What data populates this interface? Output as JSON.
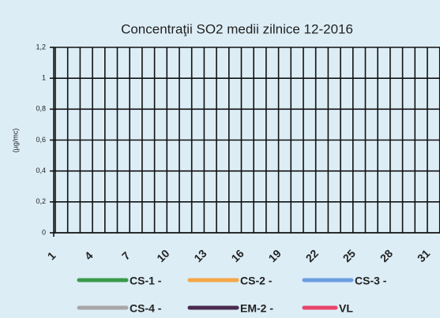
{
  "chart_data": {
    "type": "line",
    "title": "Concentraţii SO2 medii zilnice 12-2016",
    "y_label": "(µg/mc)",
    "categories": [
      "1",
      null,
      null,
      "4",
      null,
      null,
      "7",
      null,
      null,
      "10",
      null,
      null,
      "13",
      null,
      null,
      "16",
      null,
      null,
      "19",
      null,
      null,
      "22",
      null,
      null,
      "25",
      null,
      null,
      "28",
      null,
      null,
      "31"
    ],
    "ylim": [
      0,
      1.2
    ],
    "yticks": [
      0,
      {
        "value": 0.2,
        "label": "0,2"
      },
      {
        "value": 0.4,
        "label": "0,4"
      },
      {
        "value": 0.6,
        "label": "0,6"
      },
      {
        "value": 0.8,
        "label": "0,8"
      },
      1,
      {
        "value": 1.2,
        "label": "1,2"
      }
    ],
    "grid": true,
    "series": [
      {
        "name": "CS-1 -",
        "color": "#3a9a4a",
        "values": [
          null,
          null,
          null,
          null,
          null,
          null,
          null,
          null,
          null,
          null,
          null,
          null,
          null,
          null,
          null,
          null,
          null,
          null,
          null,
          null,
          null,
          null,
          null,
          null,
          null,
          null,
          null,
          null,
          null,
          null,
          null
        ]
      },
      {
        "name": "CS-2 -",
        "color": "#f5a646",
        "values": [
          null,
          null,
          null,
          null,
          null,
          null,
          null,
          null,
          null,
          null,
          null,
          null,
          null,
          null,
          null,
          null,
          null,
          null,
          null,
          null,
          null,
          null,
          null,
          null,
          null,
          null,
          null,
          null,
          null,
          null,
          null
        ]
      },
      {
        "name": "CS-3 -",
        "color": "#6a9ee0",
        "values": [
          null,
          null,
          null,
          null,
          null,
          null,
          null,
          null,
          null,
          null,
          null,
          null,
          null,
          null,
          null,
          null,
          null,
          null,
          null,
          null,
          null,
          null,
          null,
          null,
          null,
          null,
          null,
          null,
          null,
          null,
          null
        ]
      },
      {
        "name": "CS-4 -",
        "color": "#a8a8a8",
        "values": [
          null,
          null,
          null,
          null,
          null,
          null,
          null,
          null,
          null,
          null,
          null,
          null,
          null,
          null,
          null,
          null,
          null,
          null,
          null,
          null,
          null,
          null,
          null,
          null,
          null,
          null,
          null,
          null,
          null,
          null,
          null
        ]
      },
      {
        "name": "EM-2 -",
        "color": "#4a2a4e",
        "values": [
          null,
          null,
          null,
          null,
          null,
          null,
          null,
          null,
          null,
          null,
          null,
          null,
          null,
          null,
          null,
          null,
          null,
          null,
          null,
          null,
          null,
          null,
          null,
          null,
          null,
          null,
          null,
          null,
          null,
          null,
          null
        ]
      },
      {
        "name": "VL",
        "color": "#e8456a",
        "values": [
          null,
          null,
          null,
          null,
          null,
          null,
          null,
          null,
          null,
          null,
          null,
          null,
          null,
          null,
          null,
          null,
          null,
          null,
          null,
          null,
          null,
          null,
          null,
          null,
          null,
          null,
          null,
          null,
          null,
          null,
          null
        ]
      }
    ]
  }
}
